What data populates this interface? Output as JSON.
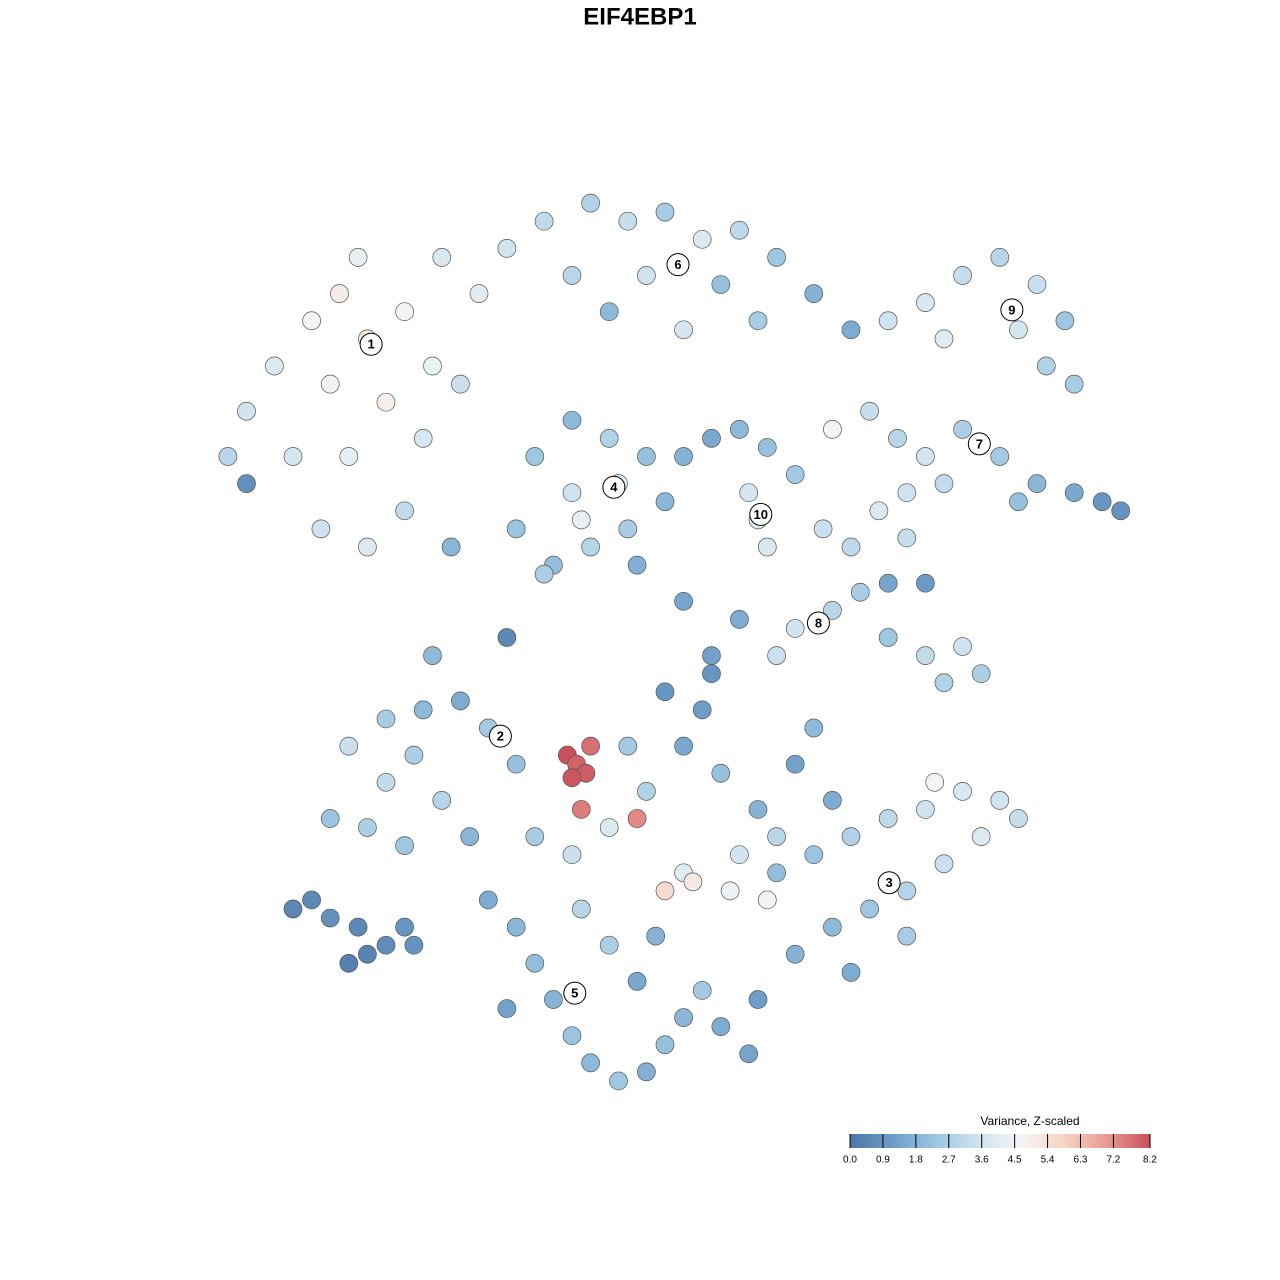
{
  "chart_data": {
    "type": "scatter",
    "title": "EIF4EBP1",
    "xlim": [
      0,
      100
    ],
    "ylim": [
      0,
      100
    ],
    "colorbar": {
      "title": "Variance, Z-scaled",
      "clim": [
        0,
        8.2
      ],
      "colors": [
        "#4d76a6",
        "#6d9cc8",
        "#9cc6e0",
        "#cfe3ef",
        "#f5f5f5",
        "#f7d3c4",
        "#e99a90",
        "#c9505c"
      ],
      "ticks": [
        {
          "value": 0,
          "label": "0.0"
        },
        0.9,
        1.8,
        2.7,
        3.6,
        4.5,
        5.4,
        6.3,
        7.2,
        8.2
      ]
    },
    "series": [
      {
        "x": [
          5,
          8,
          12,
          15,
          18,
          22,
          25,
          20,
          14,
          10,
          16,
          24,
          28,
          13,
          18,
          22,
          3,
          30,
          26,
          17
        ],
        "y": [
          75,
          80,
          85,
          88,
          83,
          86,
          80,
          76,
          78,
          70,
          70,
          72,
          78,
          62,
          60,
          64,
          70,
          88,
          92,
          92
        ],
        "values": [
          3.6,
          3.9,
          4.6,
          5.0,
          5.2,
          4.8,
          4.4,
          4.9,
          4.5,
          3.7,
          4.2,
          3.8,
          3.4,
          3.5,
          3.9,
          3.2,
          3.0,
          4.1,
          3.8,
          4.3
        ]
      },
      {
        "x": [
          33,
          37,
          42,
          46,
          50,
          54,
          58,
          62,
          66,
          70,
          40,
          48,
          56,
          44,
          60,
          52
        ],
        "y": [
          93,
          96,
          98,
          96,
          97,
          94,
          95,
          92,
          88,
          84,
          90,
          90,
          89,
          86,
          85,
          84
        ],
        "values": [
          3.6,
          3.2,
          2.8,
          3.3,
          2.6,
          3.9,
          3.1,
          2.4,
          1.8,
          1.6,
          3.0,
          3.5,
          2.2,
          2.0,
          2.6,
          3.7
        ]
      },
      {
        "x": [
          74,
          78,
          82,
          86,
          90,
          93,
          88,
          80,
          91,
          94
        ],
        "y": [
          85,
          87,
          90,
          92,
          89,
          85,
          84,
          83,
          80,
          78
        ],
        "values": [
          3.5,
          3.8,
          3.3,
          3.0,
          3.4,
          2.4,
          3.7,
          4.0,
          2.8,
          2.6
        ]
      },
      {
        "x": [
          72,
          75,
          78,
          82,
          86,
          90,
          94,
          97,
          99,
          88,
          80,
          76,
          68
        ],
        "y": [
          75,
          72,
          70,
          73,
          70,
          67,
          66,
          65,
          64,
          65,
          67,
          66,
          73
        ],
        "values": [
          3.3,
          3.0,
          3.6,
          2.7,
          2.5,
          1.9,
          1.5,
          1.0,
          0.9,
          2.2,
          3.2,
          3.5,
          4.6
        ]
      },
      {
        "x": [
          36,
          40,
          44,
          48,
          50,
          46,
          42,
          38,
          34,
          40,
          45,
          41,
          47
        ],
        "y": [
          70,
          74,
          72,
          70,
          65,
          62,
          60,
          58,
          62,
          66,
          67,
          63,
          58
        ],
        "values": [
          2.4,
          2.0,
          2.8,
          2.2,
          1.9,
          2.6,
          2.9,
          2.1,
          2.3,
          3.5,
          3.9,
          4.3,
          1.7
        ]
      },
      {
        "x": [
          52,
          55,
          58,
          61,
          64,
          60,
          61,
          59,
          67,
          70,
          73,
          76
        ],
        "y": [
          70,
          72,
          73,
          71,
          68,
          63,
          60,
          66,
          62,
          60,
          64,
          61
        ],
        "values": [
          1.8,
          1.5,
          2.0,
          2.2,
          2.5,
          4.0,
          3.8,
          3.7,
          3.4,
          3.1,
          3.9,
          3.3
        ]
      },
      {
        "x": [
          64,
          68,
          71,
          74,
          78,
          74,
          78,
          82,
          84,
          80,
          62,
          58,
          55
        ],
        "y": [
          51,
          53,
          55,
          56,
          56,
          50,
          48,
          49,
          46,
          45,
          48,
          52,
          48
        ],
        "values": [
          3.6,
          3.0,
          2.6,
          1.4,
          1.1,
          2.4,
          3.2,
          3.5,
          2.7,
          2.8,
          3.4,
          1.6,
          1.3
        ]
      },
      {
        "x": [
          16,
          20,
          24,
          28,
          31,
          34,
          14,
          18,
          22,
          26,
          20,
          29,
          23
        ],
        "y": [
          38,
          41,
          42,
          43,
          40,
          36,
          30,
          29,
          27,
          32,
          34,
          28,
          37
        ],
        "values": [
          3.4,
          2.6,
          2.0,
          1.6,
          2.5,
          2.2,
          2.3,
          2.7,
          2.4,
          2.9,
          3.2,
          1.9,
          2.7
        ]
      },
      {
        "x": [
          10,
          12,
          14,
          17,
          18,
          20,
          22,
          23,
          16
        ],
        "y": [
          20,
          21,
          19,
          18,
          15,
          16,
          18,
          16,
          14
        ],
        "values": [
          0.5,
          0.6,
          0.8,
          0.6,
          0.4,
          0.7,
          1.0,
          0.9,
          0.3
        ]
      },
      {
        "x": [
          36,
          40,
          44,
          48,
          52,
          54,
          56,
          60,
          62,
          58,
          52,
          50,
          53,
          57,
          61,
          46,
          50,
          64,
          66,
          68
        ],
        "y": [
          28,
          26,
          29,
          33,
          38,
          42,
          35,
          31,
          28,
          26,
          24,
          22,
          23,
          22,
          21,
          38,
          44,
          36,
          40,
          32
        ],
        "values": [
          2.6,
          3.4,
          3.9,
          2.8,
          1.5,
          1.2,
          2.2,
          1.8,
          3.0,
          3.6,
          4.0,
          5.6,
          5.1,
          4.5,
          4.8,
          2.5,
          1.0,
          1.3,
          2.0,
          1.6
        ]
      },
      {
        "x": [
          66,
          70,
          74,
          78,
          82,
          86,
          88,
          84,
          80,
          76,
          72,
          68,
          64,
          70,
          76,
          79,
          62
        ],
        "y": [
          26,
          28,
          30,
          31,
          33,
          32,
          30,
          28,
          25,
          22,
          20,
          18,
          15,
          13,
          17,
          34,
          24
        ],
        "values": [
          2.3,
          2.8,
          3.1,
          3.5,
          3.8,
          3.6,
          3.3,
          3.9,
          3.4,
          2.9,
          2.4,
          2.0,
          1.8,
          1.6,
          2.6,
          4.6,
          2.1
        ]
      },
      {
        "x": [
          31,
          34,
          36,
          38,
          40,
          42,
          45,
          48,
          50,
          52,
          54,
          56,
          59,
          44,
          41,
          47,
          33,
          49,
          60
        ],
        "y": [
          21,
          18,
          14,
          10,
          6,
          3,
          1,
          2,
          5,
          8,
          11,
          7,
          4,
          16,
          20,
          12,
          9,
          17,
          10
        ],
        "values": [
          1.6,
          1.9,
          2.1,
          1.8,
          2.3,
          2.0,
          2.4,
          1.7,
          2.2,
          1.9,
          2.5,
          1.6,
          1.4,
          2.7,
          3.0,
          1.5,
          1.3,
          1.8,
          1.2
        ]
      },
      {
        "x": [
          27,
          5,
          33,
          37,
          52,
          55,
          25
        ],
        "y": [
          60,
          67,
          50,
          57,
          54,
          46,
          48
        ],
        "values": [
          1.9,
          0.8,
          0.6,
          2.7,
          1.4,
          1.0,
          2.0
        ]
      },
      {
        "x": [
          39.5,
          40.5,
          41.5,
          42,
          40,
          41,
          47
        ],
        "y": [
          37,
          36,
          35,
          38,
          34.5,
          31,
          30
        ],
        "values": [
          8.2,
          7.9,
          8.0,
          7.7,
          8.1,
          7.5,
          7.3
        ]
      }
    ],
    "annotations": [
      {
        "text": "1",
        "x": 18.4,
        "y": 82.4
      },
      {
        "text": "2",
        "x": 32.3,
        "y": 39.1
      },
      {
        "text": "3",
        "x": 74.1,
        "y": 22.9
      },
      {
        "text": "4",
        "x": 44.5,
        "y": 66.6
      },
      {
        "text": "5",
        "x": 40.3,
        "y": 10.7
      },
      {
        "text": "6",
        "x": 51.4,
        "y": 91.2
      },
      {
        "text": "7",
        "x": 83.8,
        "y": 71.4
      },
      {
        "text": "8",
        "x": 66.5,
        "y": 51.6
      },
      {
        "text": "9",
        "x": 87.3,
        "y": 86.2
      },
      {
        "text": "10",
        "x": 60.3,
        "y": 63.6
      }
    ]
  }
}
